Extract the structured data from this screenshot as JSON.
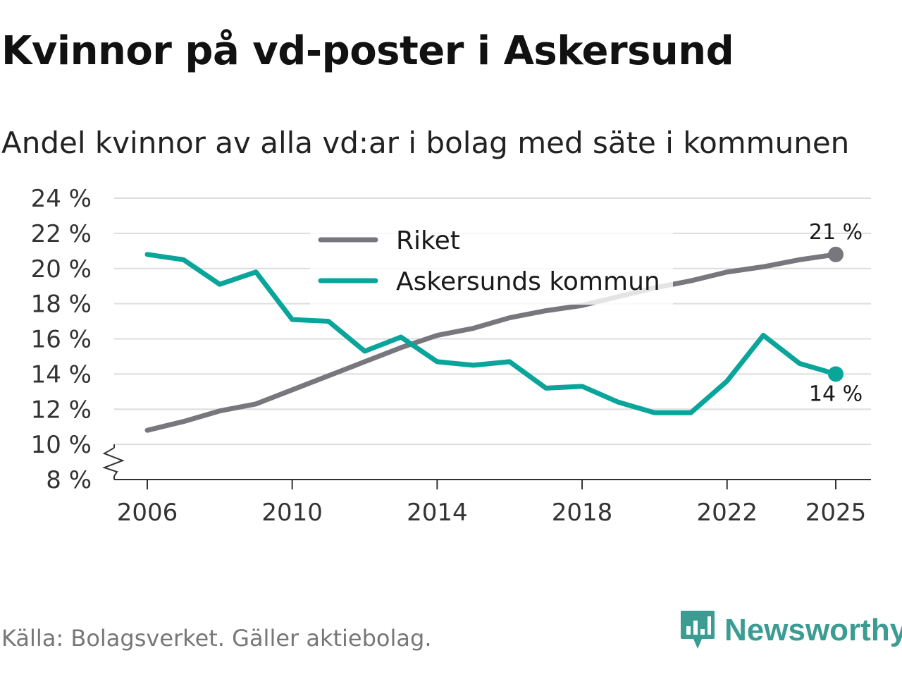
{
  "title": "Kvinnor på vd-poster i Askersund",
  "subtitle": "Andel kvinnor av alla vd:ar i bolag med säte i kommunen",
  "source": "Källa: Bolagsverket. Gäller aktiebolag.",
  "brand": "Newsworthy",
  "colors": {
    "riket": "#78777d",
    "askersund": "#0aa59a",
    "grid": "#dddddd",
    "brand": "#3a9c92"
  },
  "chart_data": {
    "type": "line",
    "title": "Kvinnor på vd-poster i Askersund",
    "subtitle": "Andel kvinnor av alla vd:ar i bolag med säte i kommunen",
    "xlabel": "",
    "ylabel": "",
    "x": [
      2006,
      2007,
      2008,
      2009,
      2010,
      2011,
      2012,
      2013,
      2014,
      2015,
      2016,
      2017,
      2018,
      2019,
      2020,
      2021,
      2022,
      2023,
      2024,
      2025
    ],
    "x_ticks": [
      2006,
      2010,
      2014,
      2018,
      2022,
      2025
    ],
    "x_tick_labels": [
      "2006",
      "2010",
      "2014",
      "2018",
      "2022",
      "2025"
    ],
    "ylim": [
      8,
      24
    ],
    "y_ticks": [
      8,
      10,
      12,
      14,
      16,
      18,
      20,
      22,
      24
    ],
    "y_tick_labels": [
      "8 %",
      "10 %",
      "12 %",
      "14 %",
      "16 %",
      "18 %",
      "20 %",
      "22 %",
      "24 %"
    ],
    "axis_break": true,
    "grid": true,
    "legend_position": "top-center",
    "series": [
      {
        "name": "Riket",
        "key": "riket",
        "values": [
          10.8,
          11.3,
          11.9,
          12.3,
          13.1,
          13.9,
          14.7,
          15.5,
          16.2,
          16.6,
          17.2,
          17.6,
          17.9,
          18.4,
          18.9,
          19.3,
          19.8,
          20.1,
          20.5,
          20.8
        ],
        "end_label": "21 %"
      },
      {
        "name": "Askersunds kommun",
        "key": "askersund",
        "values": [
          20.8,
          20.5,
          19.1,
          19.8,
          17.1,
          17.0,
          15.3,
          16.1,
          14.7,
          14.5,
          14.7,
          13.2,
          13.3,
          12.4,
          11.8,
          11.8,
          13.6,
          16.2,
          14.6,
          14.0
        ],
        "end_label": "14 %"
      }
    ]
  }
}
